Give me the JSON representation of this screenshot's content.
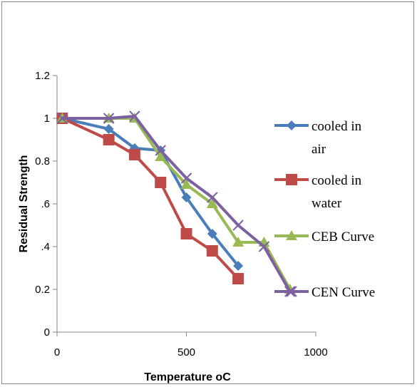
{
  "chart_data": {
    "type": "line",
    "title": "",
    "xlabel": "Temperature oC",
    "ylabel": "Residual Strength",
    "xlim": [
      0,
      1000
    ],
    "ylim": [
      0,
      1.2
    ],
    "x_ticks": [
      0,
      500,
      1000
    ],
    "y_ticks": [
      0,
      0.2,
      0.4,
      0.6,
      0.8,
      1,
      1.2
    ],
    "y_tick_labels": [
      "0",
      "0.2",
      ".4",
      ".6",
      "0.8",
      "1",
      "1.2"
    ],
    "grid": false,
    "legend_position": "right",
    "series": [
      {
        "name": "cooled in air",
        "legend_lines": [
          "cooled in",
          "air"
        ],
        "color": "#4a7ebb",
        "marker": "diamond",
        "x": [
          20,
          200,
          300,
          400,
          500,
          600,
          700
        ],
        "y": [
          1.0,
          0.95,
          0.86,
          0.85,
          0.63,
          0.46,
          0.31
        ]
      },
      {
        "name": "cooled in water",
        "legend_lines": [
          "cooled in",
          "water"
        ],
        "color": "#be4b48",
        "marker": "square",
        "x": [
          20,
          200,
          300,
          400,
          500,
          600,
          700
        ],
        "y": [
          1.0,
          0.9,
          0.83,
          0.7,
          0.46,
          0.38,
          0.25
        ]
      },
      {
        "name": "CEB Curve",
        "legend_lines": [
          "CEB Curve"
        ],
        "color": "#98b954",
        "marker": "triangle",
        "x": [
          20,
          200,
          300,
          400,
          500,
          600,
          700,
          800,
          900
        ],
        "y": [
          1.0,
          1.0,
          1.0,
          0.82,
          0.69,
          0.6,
          0.42,
          0.42,
          0.2
        ]
      },
      {
        "name": "CEN Curve",
        "legend_lines": [
          "CEN Curve"
        ],
        "color": "#7d60a0",
        "marker": "x",
        "x": [
          20,
          200,
          300,
          400,
          500,
          600,
          700,
          800,
          900
        ],
        "y": [
          1.0,
          1.0,
          1.01,
          0.85,
          0.72,
          0.63,
          0.5,
          0.4,
          0.19
        ]
      }
    ]
  }
}
